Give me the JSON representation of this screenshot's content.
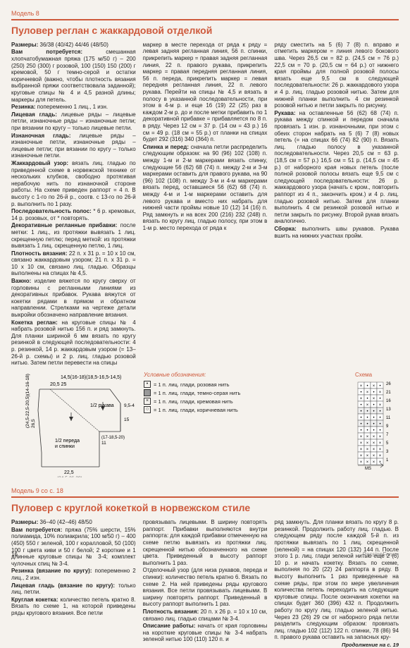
{
  "model8": {
    "label": "Модель 8",
    "title": "Пуловер реглан с жаккардовой отделкой",
    "col1": [
      {
        "b": true,
        "t": "Размеры: 36/38 (40/42) 44/46 (48/50)"
      },
      {
        "b": false,
        "t": "Вам потребуется: смешанная хлопчатобумажная пряжа (175 м/50 г) – 200 (250) 250 (300) г розовой, 100 (150) 150 (200) г кремовой, 50 г темно-серой и остатки коричневой (важно, чтобы плотность вязания выбранной пряжи соответствовала заданной); круговые спицы № 4 и 4,5 разной длины; маркеры для петель."
      },
      {
        "b": true,
        "t": "Резинка: попеременно 1 лиц., 1 изн."
      },
      {
        "b": false,
        "t": "Лицевая гладь: лицевые ряды – лицевые петли, изнаночные ряды – изнаночные петли; при вязании по кругу – только лицевые петли."
      },
      {
        "b": false,
        "t": "Изнаночная гладь: лицевые ряды – изнаночные петли, изнаночные ряды – лицевые петли; при вязании по кругу – только изнаночные петли."
      },
      {
        "b": false,
        "t": "Жаккардовый узор: вязать лиц. гладью по приведенной схеме в норвежской технике от нескольких клубков, свободно протягивая нерабочую нить по изнаночной стороне работы. На схеме приведен раппорт = 4 п. В высоту с 1-го по 26-й р., соотв. с 13-го по 26-й р. выполнить по 1 разу."
      },
      {
        "b": false,
        "t": "Последовательность полос: * 6 р. кремовых, 14 р. розовых, от * повторять."
      },
      {
        "b": false,
        "t": "Декоративные регланные прибавки: после метки: 1 лиц., из протяжки вывязать 1 лиц. скрещенную петлю; перед меткой: из протяжки вывязать 1 лиц. скрещенную петлю, 1 лиц."
      },
      {
        "b": false,
        "t": "Плотность вязания: 22 п. х 31 р. = 10 х 10 см, связано жаккардовым узором; 21 п. х 31 р. = 10 х 10 см, связано лиц. гладью. Образцы выполнены на спицах № 4,5."
      },
      {
        "b": false,
        "t": "Важно: изделие вяжется по кругу сверху от горловины с регланными линиями из декоративных прибавок. Рукава вяжутся от кокетки рядами в прямом и обратном направлении. Стрелками на чертеже детали выкройки обозначено направление вязания."
      },
      {
        "b": false,
        "t": "Кокетка реглан: на круговые спицы № 4 набрать розовой нитью 156 п. и ряд замкнуть. Для планки шириной 6 мм вязать по кругу резинкой в следующей последовательности: 4 р. резинкой, 14 р. жаккардовым узором (= 13–26-й р. схемы) и 2 р. лиц. гладью розовой нитью. Затем петли перевести на спицы"
      }
    ],
    "col2": [
      {
        "t": "маркер в месте перехода от ряда к ряду = левая задняя регланная линия, 56 п. спинки, прикрепить маркер = правая задняя регланная линия, 22 п. правого рукава, прикрепить маркер = правая передняя регланная линия, 56 п. переда, прикрепить маркер = левая передняя регланная линия, 22 п. левого рукава. Перейти на спицы № 4,5 и вязать в полосу в указанной последовательности, при этом в 4-м р. и еще 16 (19) 22 (25) раз в каждом 2-м р. до и после метки прибавить по 1 декоративной прибавке = прибавляется по 8 п. в ряду. Через 12 см = 37 р. (14 см = 43 р.) 16 см = 49 р. (18 см = 55 р.) от планки на спицах будет 292 (316) 340 (364) п."
      },
      {
        "t": "Спинка и перед: сначала петли распределить следующим образом: на 90 (96) 102 (108) п. между 1-м и 2-м маркерами вязать спинку, следующие 56 (62) 68 (74) п. между 2-м и 3-м маркерами оставить для правого рукава, на 90 (96) 102 (108) п. между 3-м и 4-м маркерами вязать перед, оставшиеся 56 (62) 68 (74) п. между 4-м и 1-м маркерами оставить для левого рукава и вместо них набрать для нижней части проймы новые 10 (12) 14 (16) п. Ряд замкнуть и на всех 200 (216) 232 (248) п. вязать по кругу лиц. гладью полосу, при этом в 1-м р. место перехода от ряда к"
      }
    ],
    "col3": [
      {
        "t": "ряду сместить на 5 (6) 7 (8) п. вправо и отметить маркером = линия левого бокового шва. Через 26,5 см = 82 р. (24,5 см = 76 р.) 22,5 см = 70 р. (20,5 см = 64 р.) от нижнего края проймы для полной розовой полосы вязать еще 9,5 см в следующей последовательности: 26 р. жаккардового узора и 4 р. лиц. гладью розовой нитью. Затем для нижней планки выполнить 4 см резинкой розовой нитью и петли закрыть по рисунку."
      },
      {
        "t": "Рукава: на оставленные 56 (62) 68 (74) п. рукава между спинкой и передом сначала провязать 1 изн. р. изнаночными, при этом с обеих сторон набрать на 5 (6) 7 (8) новых петель (= на спицах 66 (74) 82 (90) п. Вязать лиц. гладью полосу в указанной последовательности. Через 20,5 см = 63 р. (18,5 см = 57 р.) 16,5 см = 51 р. (14,5 см = 45 р.) от наборного края новых петель (после полной розовой полосы вязать еще 9,5 см с следующей последовательности: 26 р. жаккардового узора (начать с кром., повторить раппорт из 4 п., закончить кром.) и 4 р. лиц. гладью розовой нитью. Затем для планки выполнить 4 см резинкой розовой нитью и петли закрыть по рисунку. Второй рукав вязать аналогично."
      },
      {
        "t": "Сборка: выполнить швы рукавов. Рукава вшить на нижних участках пройм."
      }
    ]
  },
  "diagram": {
    "top_measurements": "14,5(16-18)(18,5-16,5-14,5)",
    "measurements2": "20,5    25",
    "side_left": "(24,5-22,5-20,5)(14-16-18)",
    "side_left2": "26,5",
    "center_label1": "1/2 рукава",
    "center_label2": "1/2 переда и спинки",
    "bottom": "22,5",
    "bottom2": "(24,5-26-28)",
    "right_num1": "9,5-4",
    "right_num2": "15",
    "right_num3": "(17-18,5-20)",
    "right_num4": "11"
  },
  "legend": {
    "title": "Условные обозначения:",
    "items": [
      {
        "sym": "•",
        "text": "= 1 п. лиц. глади, розовая нить"
      },
      {
        "sym": "",
        "text": "= 1 п. лиц. глади, темно-серая нить"
      },
      {
        "sym": "×",
        "text": "= 1 п. лиц. глади, кремовая нить"
      },
      {
        "sym": "○",
        "text": "= 1 п. лиц. глади, коричневая нить"
      }
    ]
  },
  "chart": {
    "label": "Схема",
    "rows": [
      "26",
      "21",
      "16",
      "13",
      "11",
      "9",
      "7",
      "5",
      "3",
      "1"
    ],
    "ms": "MS"
  },
  "model9": {
    "label": "Модель 9 со с. 18",
    "title": "Пуловер с круглой кокеткой в норвежском стиле",
    "col1": [
      {
        "b": true,
        "t": "Размеры: 36–40 (42–46) 48/50"
      },
      {
        "b": false,
        "t": "Вам потребуется: пряжа (75% шерсти, 15% полиамида, 10% полиакрила; 100 м/50 г) – 400 (450) 550 г зеленой, 100 г коралловой, 50 (100) 100 г цвета киви и 50 г белой; 2 короткие и 1 длинные круговые спицы № 3-4; комплект чулочных спиц № 3-4."
      },
      {
        "b": false,
        "t": "Резинка (вязание по кругу): попеременно 2 лиц., 2 изн."
      },
      {
        "b": false,
        "t": "Лицевая гладь (вязание по кругу): только лиц. петли."
      },
      {
        "b": false,
        "t": "Круглая кокетка: количество петель кратно 8. Вязать по схеме 1, на которой приведены ряды кругового вязания. Все петли"
      }
    ],
    "col2": [
      {
        "t": "провязывать лицевыми. В ширину повторять раппорт. Прибавки выполняются внутри раппорта: для каждой прибавки отмеченную на схеме петлю вывязать из протяжки лиц. скрещенной нитью обозначенного на схеме цвета. Приведенный в высоту раппорт выполнить 1 раз."
      },
      {
        "t": "Отделочный узор (для низа рукавов, переда и спинки): количество петель кратно 6. Вязать по схеме 2. На ней приведены ряды кругового вязания. Все петли провязывать лицевыми. В ширину повторять раппорт. Приведенный в высоту раппорт выполнить 1 раз."
      },
      {
        "t": "Плотность вязания: 20 п. х 26 р. = 10 х 10 см, связано лиц. гладью спицами № 3-4."
      },
      {
        "t": "Описание работы: начать от края горловины на короткие круговые спицы № 3-4 набрать зеленой нитью 100 (110) 120 п. и"
      }
    ],
    "col3": [
      {
        "t": "ряд замкнуть. Для планки вязать по кругу 8 р. резинкой. Продолжить работу лиц. гладью. В следующем ряду после каждой 5-й п. из протяжки вывязать по 1 лиц. скрещенной (зеленой) = на спицах 120 (132) 144 п. После этого 1 р. лиц. глади зеленой нитью еще 2 (6) 10 р. и начать кокетку. Вязать по схеме, выполняя по 20 (22) 24 раппорта в ряду. В высоту выполнить 1 раз приведенные на схеме ряды, при этом по мере увеличения количества петель переходить на следующие круговые спицы. После окончания кокетки на спицах будет 360 (396) 432 п. Продолжить работу по кругу лиц. гладью зеленой нитью. Через 23 (26) 29 см от наборного ряда петли разделить следующим образом: провязать лиц. гладью 102 (112) 122 п. спинки, 78 (86) 94 п. правого рукава оставить на запасных кру-"
      }
    ],
    "continuation": "Продолжение на с. 19"
  },
  "page": "16",
  "brand": "PassionForum"
}
